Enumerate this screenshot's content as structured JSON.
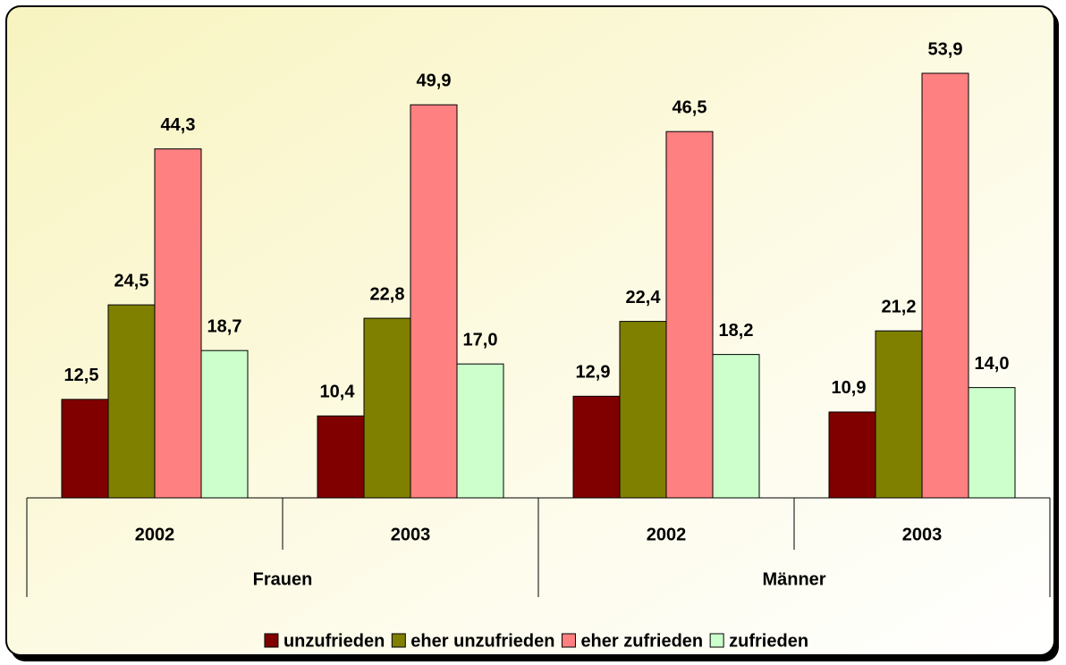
{
  "chart_data": {
    "type": "bar",
    "categories": [
      "2002",
      "2003",
      "2002",
      "2003"
    ],
    "groups": [
      "Frauen",
      "Männer"
    ],
    "series": [
      {
        "name": "unzufrieden",
        "color": "#800000",
        "values": [
          12.5,
          10.4,
          12.9,
          10.9
        ],
        "value_labels": [
          "12,5",
          "10,4",
          "12,9",
          "10,9"
        ]
      },
      {
        "name": "eher unzufrieden",
        "color": "#808000",
        "values": [
          24.5,
          22.8,
          22.4,
          21.2
        ],
        "value_labels": [
          "24,5",
          "22,8",
          "22,4",
          "21,2"
        ]
      },
      {
        "name": "eher zufrieden",
        "color": "#FF8080",
        "values": [
          44.3,
          49.9,
          46.5,
          53.9
        ],
        "value_labels": [
          "44,3",
          "49,9",
          "46,5",
          "53,9"
        ]
      },
      {
        "name": "zufrieden",
        "color": "#CCFFCC",
        "values": [
          18.7,
          17.0,
          18.2,
          14.0
        ],
        "value_labels": [
          "18,7",
          "17,0",
          "18,2",
          "14,0"
        ]
      }
    ],
    "legend": "bottom"
  }
}
